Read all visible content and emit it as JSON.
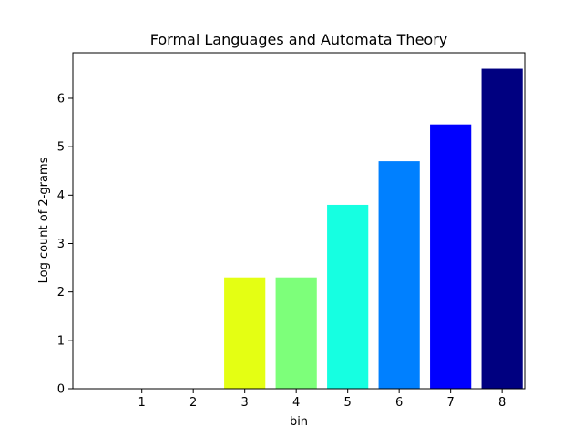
{
  "chart_data": {
    "type": "bar",
    "title": "Formal Languages and Automata Theory",
    "xlabel": "bin",
    "ylabel": "Log count of 2-grams",
    "categories": [
      "1",
      "2",
      "3",
      "4",
      "5",
      "6",
      "7",
      "8"
    ],
    "values": [
      0,
      0,
      2.3,
      2.3,
      3.8,
      4.7,
      5.46,
      6.61
    ],
    "colors": [
      "#800000",
      "#ff0000",
      "#e4ff13",
      "#7dff7a",
      "#16ffe1",
      "#0080ff",
      "#0000ff",
      "#000080"
    ],
    "yticks": [
      0,
      1,
      2,
      3,
      4,
      5,
      6
    ],
    "ylim": [
      0,
      6.94
    ],
    "grid": false,
    "legend": "none"
  }
}
